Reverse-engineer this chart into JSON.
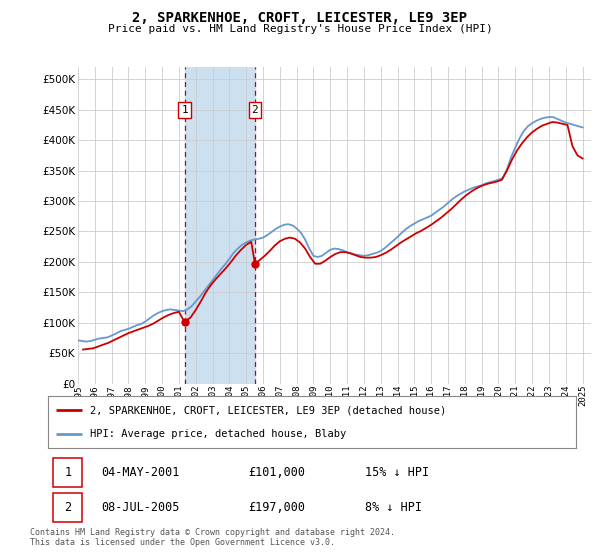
{
  "title": "2, SPARKENHOE, CROFT, LEICESTER, LE9 3EP",
  "subtitle": "Price paid vs. HM Land Registry's House Price Index (HPI)",
  "ytick_values": [
    0,
    50000,
    100000,
    150000,
    200000,
    250000,
    300000,
    350000,
    400000,
    450000,
    500000
  ],
  "ylim": [
    0,
    520000
  ],
  "xlim_start": 1995.0,
  "xlim_end": 2025.5,
  "xtick_years": [
    1995,
    1996,
    1997,
    1998,
    1999,
    2000,
    2001,
    2002,
    2003,
    2004,
    2005,
    2006,
    2007,
    2008,
    2009,
    2010,
    2011,
    2012,
    2013,
    2014,
    2015,
    2016,
    2017,
    2018,
    2019,
    2020,
    2021,
    2022,
    2023,
    2024,
    2025
  ],
  "sale1_x": 2001.34,
  "sale1_y": 101000,
  "sale1_label": "1",
  "sale2_x": 2005.52,
  "sale2_y": 197000,
  "sale2_label": "2",
  "shade_x1": 2001.34,
  "shade_x2": 2005.52,
  "legend_line1": "2, SPARKENHOE, CROFT, LEICESTER, LE9 3EP (detached house)",
  "legend_line2": "HPI: Average price, detached house, Blaby",
  "table_row1": [
    "1",
    "04-MAY-2001",
    "£101,000",
    "15% ↓ HPI"
  ],
  "table_row2": [
    "2",
    "08-JUL-2005",
    "£197,000",
    "8% ↓ HPI"
  ],
  "footer": "Contains HM Land Registry data © Crown copyright and database right 2024.\nThis data is licensed under the Open Government Licence v3.0.",
  "color_red": "#cc0000",
  "color_blue": "#6699cc",
  "color_shade": "#cce0f0",
  "color_dashed": "#cc0000",
  "bg_color": "#ffffff",
  "grid_color": "#cccccc",
  "hpi_data_x": [
    1995.0,
    1995.25,
    1995.5,
    1995.75,
    1996.0,
    1996.25,
    1996.5,
    1996.75,
    1997.0,
    1997.25,
    1997.5,
    1997.75,
    1998.0,
    1998.25,
    1998.5,
    1998.75,
    1999.0,
    1999.25,
    1999.5,
    1999.75,
    2000.0,
    2000.25,
    2000.5,
    2000.75,
    2001.0,
    2001.25,
    2001.5,
    2001.75,
    2002.0,
    2002.25,
    2002.5,
    2002.75,
    2003.0,
    2003.25,
    2003.5,
    2003.75,
    2004.0,
    2004.25,
    2004.5,
    2004.75,
    2005.0,
    2005.25,
    2005.5,
    2005.75,
    2006.0,
    2006.25,
    2006.5,
    2006.75,
    2007.0,
    2007.25,
    2007.5,
    2007.75,
    2008.0,
    2008.25,
    2008.5,
    2008.75,
    2009.0,
    2009.25,
    2009.5,
    2009.75,
    2010.0,
    2010.25,
    2010.5,
    2010.75,
    2011.0,
    2011.25,
    2011.5,
    2011.75,
    2012.0,
    2012.25,
    2012.5,
    2012.75,
    2013.0,
    2013.25,
    2013.5,
    2013.75,
    2014.0,
    2014.25,
    2014.5,
    2014.75,
    2015.0,
    2015.25,
    2015.5,
    2015.75,
    2016.0,
    2016.25,
    2016.5,
    2016.75,
    2017.0,
    2017.25,
    2017.5,
    2017.75,
    2018.0,
    2018.25,
    2018.5,
    2018.75,
    2019.0,
    2019.25,
    2019.5,
    2019.75,
    2020.0,
    2020.25,
    2020.5,
    2020.75,
    2021.0,
    2021.25,
    2021.5,
    2021.75,
    2022.0,
    2022.25,
    2022.5,
    2022.75,
    2023.0,
    2023.25,
    2023.5,
    2023.75,
    2024.0,
    2024.25,
    2024.5,
    2024.75,
    2025.0
  ],
  "hpi_data_y": [
    71000,
    70000,
    69000,
    70000,
    72000,
    74000,
    75000,
    76000,
    79000,
    82000,
    86000,
    88000,
    90000,
    93000,
    96000,
    98000,
    102000,
    107000,
    112000,
    116000,
    119000,
    121000,
    122000,
    121000,
    120000,
    119000,
    122000,
    127000,
    135000,
    143000,
    152000,
    161000,
    170000,
    179000,
    188000,
    196000,
    205000,
    215000,
    222000,
    228000,
    232000,
    235000,
    237000,
    238000,
    240000,
    244000,
    249000,
    254000,
    258000,
    261000,
    262000,
    260000,
    255000,
    248000,
    237000,
    222000,
    210000,
    208000,
    210000,
    215000,
    220000,
    222000,
    221000,
    219000,
    216000,
    214000,
    212000,
    211000,
    210000,
    211000,
    213000,
    215000,
    218000,
    223000,
    229000,
    235000,
    241000,
    248000,
    254000,
    259000,
    263000,
    267000,
    270000,
    273000,
    276000,
    281000,
    286000,
    291000,
    297000,
    303000,
    308000,
    312000,
    316000,
    319000,
    322000,
    324000,
    326000,
    329000,
    331000,
    333000,
    335000,
    338000,
    352000,
    372000,
    388000,
    403000,
    415000,
    423000,
    428000,
    432000,
    435000,
    437000,
    438000,
    438000,
    435000,
    432000,
    429000,
    427000,
    425000,
    423000,
    421000
  ],
  "price_paid_x": [
    1995.3,
    1995.6,
    1995.9,
    1996.2,
    1996.5,
    1996.8,
    1997.1,
    1997.4,
    1997.7,
    1998.0,
    1998.3,
    1998.6,
    1998.9,
    1999.2,
    1999.5,
    1999.8,
    2000.1,
    2000.4,
    2000.7,
    2001.0,
    2001.34,
    2001.7,
    2002.0,
    2002.3,
    2002.6,
    2002.9,
    2003.2,
    2003.5,
    2003.8,
    2004.1,
    2004.4,
    2004.7,
    2005.0,
    2005.3,
    2005.52,
    2005.8,
    2006.1,
    2006.4,
    2006.7,
    2007.0,
    2007.3,
    2007.6,
    2007.9,
    2008.2,
    2008.5,
    2008.8,
    2009.1,
    2009.4,
    2009.7,
    2010.0,
    2010.3,
    2010.6,
    2010.9,
    2011.2,
    2011.5,
    2011.8,
    2012.1,
    2012.4,
    2012.7,
    2013.0,
    2013.3,
    2013.6,
    2013.9,
    2014.2,
    2014.5,
    2014.8,
    2015.1,
    2015.4,
    2015.7,
    2016.0,
    2016.3,
    2016.6,
    2016.9,
    2017.2,
    2017.5,
    2017.8,
    2018.1,
    2018.4,
    2018.7,
    2019.0,
    2019.3,
    2019.6,
    2019.9,
    2020.2,
    2020.5,
    2020.8,
    2021.1,
    2021.4,
    2021.7,
    2022.0,
    2022.3,
    2022.6,
    2022.9,
    2023.2,
    2023.5,
    2023.8,
    2024.1,
    2024.4,
    2024.7,
    2025.0
  ],
  "price_paid_y": [
    56000,
    57000,
    58000,
    61000,
    64000,
    67000,
    71000,
    75000,
    79000,
    83000,
    86000,
    89000,
    92000,
    95000,
    99000,
    104000,
    109000,
    113000,
    116000,
    118000,
    101000,
    109000,
    121000,
    135000,
    150000,
    162000,
    172000,
    181000,
    190000,
    200000,
    211000,
    220000,
    228000,
    233000,
    197000,
    203000,
    210000,
    218000,
    227000,
    234000,
    238000,
    240000,
    238000,
    232000,
    222000,
    208000,
    197000,
    197000,
    202000,
    208000,
    213000,
    216000,
    216000,
    214000,
    211000,
    208000,
    207000,
    207000,
    208000,
    211000,
    215000,
    220000,
    226000,
    232000,
    237000,
    242000,
    247000,
    251000,
    256000,
    261000,
    267000,
    273000,
    280000,
    287000,
    295000,
    303000,
    310000,
    316000,
    321000,
    325000,
    328000,
    330000,
    332000,
    335000,
    350000,
    368000,
    383000,
    395000,
    405000,
    413000,
    419000,
    424000,
    427000,
    430000,
    429000,
    427000,
    425000,
    390000,
    375000,
    370000
  ]
}
